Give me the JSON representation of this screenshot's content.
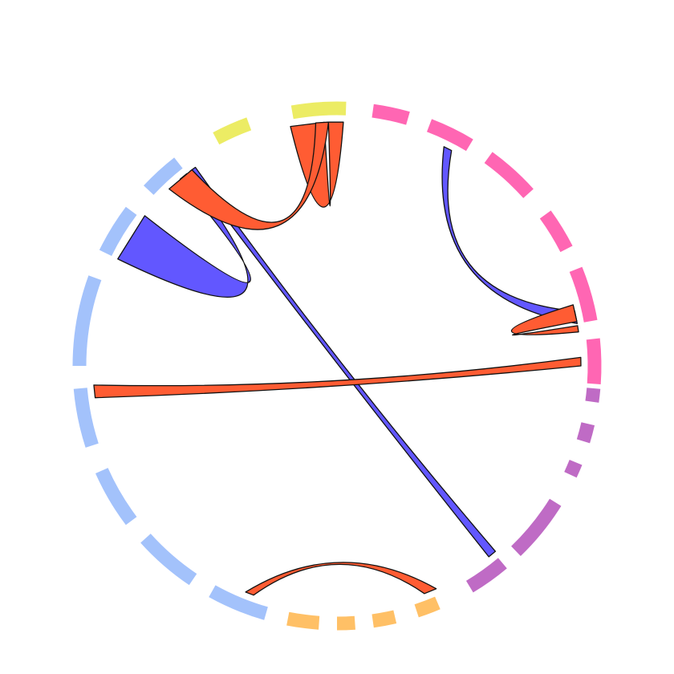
{
  "chart_data": {
    "type": "chord",
    "groups": [
      {
        "name": "",
        "color": "#ecec64",
        "segments": 3
      },
      {
        "name": "",
        "color": "#ff66b3",
        "segments": 6
      },
      {
        "name": "",
        "color": "#bf6bc5",
        "segments": 5
      },
      {
        "name": "",
        "color": "#ffc066",
        "segments": 4
      },
      {
        "name": "",
        "color": "#a3c2fb",
        "segments": 7
      }
    ],
    "ribbon_colors": [
      "#ff5c33",
      "#6257ff"
    ],
    "ribbons": [
      {
        "from": "yellow",
        "to": "yellow",
        "color": "#ff5c33"
      },
      {
        "from": "yellow",
        "to": "blue",
        "color": "#6257ff"
      },
      {
        "from": "yellow",
        "to": "purple",
        "color": "#6257ff"
      },
      {
        "from": "yellow",
        "to": "pink",
        "color": "#ff5c33"
      },
      {
        "from": "pink",
        "to": "pink",
        "color": "#6257ff"
      },
      {
        "from": "pink",
        "to": "pink",
        "color": "#ff5c33"
      },
      {
        "from": "blue",
        "to": "purple",
        "color": "#ff5c33"
      },
      {
        "from": "blue",
        "to": "orange",
        "color": "#ff5c33"
      }
    ]
  }
}
